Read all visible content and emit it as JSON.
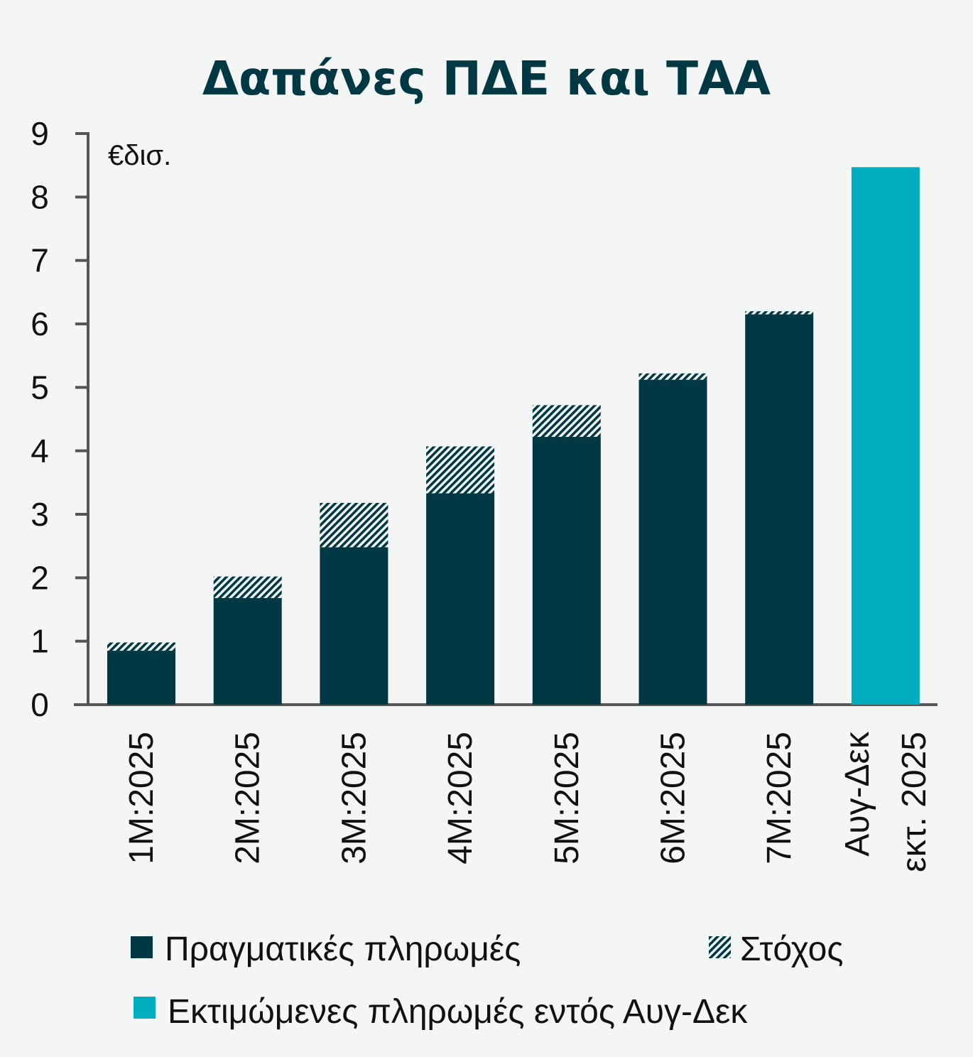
{
  "chart_data": {
    "type": "bar",
    "stacked": true,
    "title": "Δαπάνες ΠΔΕ και ΤΑΑ",
    "unit_label": "€δισ.",
    "ylim": [
      0,
      9
    ],
    "yticks": [
      0,
      1,
      2,
      3,
      4,
      5,
      6,
      7,
      8,
      9
    ],
    "categories": [
      [
        "1M:2025"
      ],
      [
        "2M:2025"
      ],
      [
        "3M:2025"
      ],
      [
        "4M:2025"
      ],
      [
        "5M:2025"
      ],
      [
        "6M:2025"
      ],
      [
        "7M:2025"
      ],
      [
        "Αυγ-Δεκ",
        "εκτ. 2025"
      ]
    ],
    "series": [
      {
        "name": "Πραγματικές πληρωμές",
        "color": "#003943",
        "pattern": "solid",
        "values": [
          0.85,
          1.68,
          2.48,
          3.33,
          4.22,
          5.12,
          6.15,
          null
        ]
      },
      {
        "name": "Στόχος",
        "color": "#003943",
        "pattern": "hatch",
        "totals": [
          0.98,
          2.02,
          3.18,
          4.07,
          4.72,
          5.22,
          6.2,
          null
        ]
      },
      {
        "name": "Εκτιμώμενες πληρωμές εντός Αυγ-Δεκ",
        "color": "#00aebf",
        "pattern": "solid",
        "values": [
          null,
          null,
          null,
          null,
          null,
          null,
          null,
          8.47
        ]
      }
    ],
    "legend": {
      "position": "bottom",
      "items": [
        {
          "label": "Πραγματικές πληρωμές",
          "swatch": "solid-dark"
        },
        {
          "label": "Στόχος",
          "swatch": "hatch"
        },
        {
          "label": "Εκτιμώμενες πληρωμές εντός Αυγ-Δεκ",
          "swatch": "solid-teal"
        }
      ]
    },
    "colors": {
      "title": "#003943",
      "axis": "#555555",
      "text": "#111111",
      "background": "#f4f6f5"
    }
  }
}
